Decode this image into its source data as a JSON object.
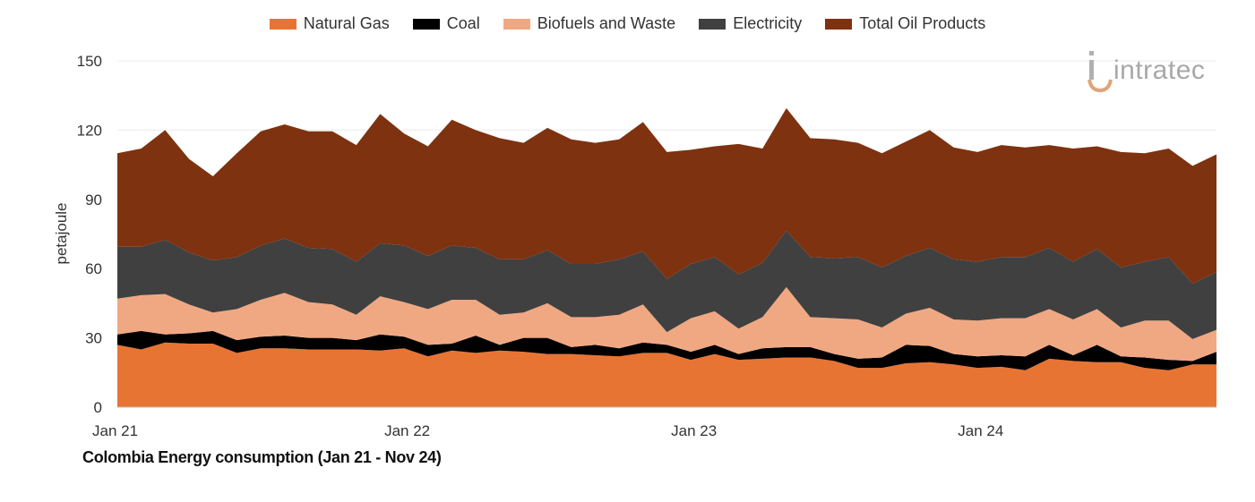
{
  "chart_data": {
    "type": "area",
    "stacked": true,
    "title": "Colombia Energy consumption (Jan 21 - Nov 24)",
    "xlabel": "",
    "ylabel": "petajoule",
    "ylim": [
      0,
      150
    ],
    "yticks": [
      0,
      30,
      60,
      90,
      120,
      150
    ],
    "xtick_labels": [
      {
        "label": "Jan 21",
        "index": 0
      },
      {
        "label": "Jan 22",
        "index": 12
      },
      {
        "label": "Jan 23",
        "index": 24
      },
      {
        "label": "Jan 24",
        "index": 36
      }
    ],
    "x": [
      "Jan 21",
      "Feb 21",
      "Mar 21",
      "Apr 21",
      "May 21",
      "Jun 21",
      "Jul 21",
      "Aug 21",
      "Sep 21",
      "Oct 21",
      "Nov 21",
      "Dec 21",
      "Jan 22",
      "Feb 22",
      "Mar 22",
      "Apr 22",
      "May 22",
      "Jun 22",
      "Jul 22",
      "Aug 22",
      "Sep 22",
      "Oct 22",
      "Nov 22",
      "Dec 22",
      "Jan 23",
      "Feb 23",
      "Mar 23",
      "Apr 23",
      "May 23",
      "Jun 23",
      "Jul 23",
      "Aug 23",
      "Sep 23",
      "Oct 23",
      "Nov 23",
      "Dec 23",
      "Jan 24",
      "Feb 24",
      "Mar 24",
      "Apr 24",
      "May 24",
      "Jun 24",
      "Jul 24",
      "Aug 24",
      "Sep 24",
      "Oct 24",
      "Nov 24"
    ],
    "legend_position": "top-center",
    "series": [
      {
        "name": "Natural Gas",
        "color": "#E87434",
        "values": [
          27,
          25,
          28,
          27.5,
          27.5,
          23.5,
          25.5,
          25.5,
          25,
          25,
          25,
          24.5,
          25.5,
          22,
          24.5,
          23.5,
          24.5,
          24,
          23,
          23,
          22.5,
          22,
          23.5,
          23.5,
          20.5,
          23,
          20.5,
          21,
          21.5,
          21.5,
          20,
          17,
          17,
          19,
          19.5,
          18.5,
          17,
          17.5,
          16,
          21,
          20,
          19.5,
          19.5,
          17,
          16,
          18.5,
          18.5
        ]
      },
      {
        "name": "Coal",
        "color": "#000000",
        "values": [
          4.5,
          8,
          3.5,
          4.5,
          5.5,
          5.5,
          5,
          5.5,
          5,
          5,
          4,
          7,
          5,
          5,
          3,
          7.5,
          2.5,
          6,
          7,
          3,
          4.5,
          3.5,
          4.5,
          3.5,
          3.5,
          4,
          2.5,
          4.5,
          4.5,
          4.5,
          3,
          4,
          4.5,
          8,
          7,
          4.5,
          5,
          5,
          6,
          6,
          2.5,
          7.5,
          2.5,
          4.5,
          4.5,
          1.5,
          5.5
        ]
      },
      {
        "name": "Biofuels and Waste",
        "color": "#F0A883",
        "values": [
          15.5,
          15.5,
          17.5,
          12.5,
          8,
          13.5,
          16,
          18.5,
          15.5,
          14.5,
          11,
          16.5,
          15,
          15.5,
          19,
          15.5,
          13,
          11,
          15,
          13,
          12,
          14.5,
          16.5,
          5.5,
          14.5,
          14.5,
          11,
          13.5,
          26,
          13,
          15.5,
          17,
          13,
          13.5,
          16.5,
          15,
          15.5,
          16,
          16.5,
          15.5,
          15.5,
          15.5,
          12.5,
          16,
          17,
          9.5,
          9.5
        ]
      },
      {
        "name": "Electricity",
        "color": "#404040",
        "values": [
          22.5,
          21,
          23.5,
          22.5,
          22.5,
          22.5,
          23.5,
          23.5,
          23.5,
          24,
          23,
          23,
          24.5,
          23,
          23.5,
          22.5,
          24,
          23,
          23,
          23,
          23,
          24,
          23,
          23,
          23.5,
          23.5,
          23.5,
          23.5,
          24.5,
          26,
          26,
          27,
          26,
          25,
          26,
          26,
          25.5,
          26.5,
          26.5,
          26.5,
          25,
          26,
          26,
          25.5,
          27.5,
          24,
          25
        ]
      },
      {
        "name": "Total Oil Products",
        "color": "#7E3210",
        "values": [
          40.5,
          42.5,
          47.5,
          40.5,
          36.5,
          45,
          49.5,
          49.5,
          50.5,
          51,
          50.5,
          56,
          48.5,
          47.5,
          54.5,
          51,
          52.5,
          50.5,
          53,
          54,
          52.5,
          52,
          56,
          55,
          49.5,
          48,
          56.5,
          49.5,
          53,
          51.5,
          51.5,
          49.5,
          49.5,
          49.5,
          51,
          48.5,
          47.5,
          48.5,
          47.5,
          44.5,
          49,
          44.5,
          50,
          47,
          47,
          51,
          51
        ]
      }
    ]
  },
  "logo_text": "intratec"
}
